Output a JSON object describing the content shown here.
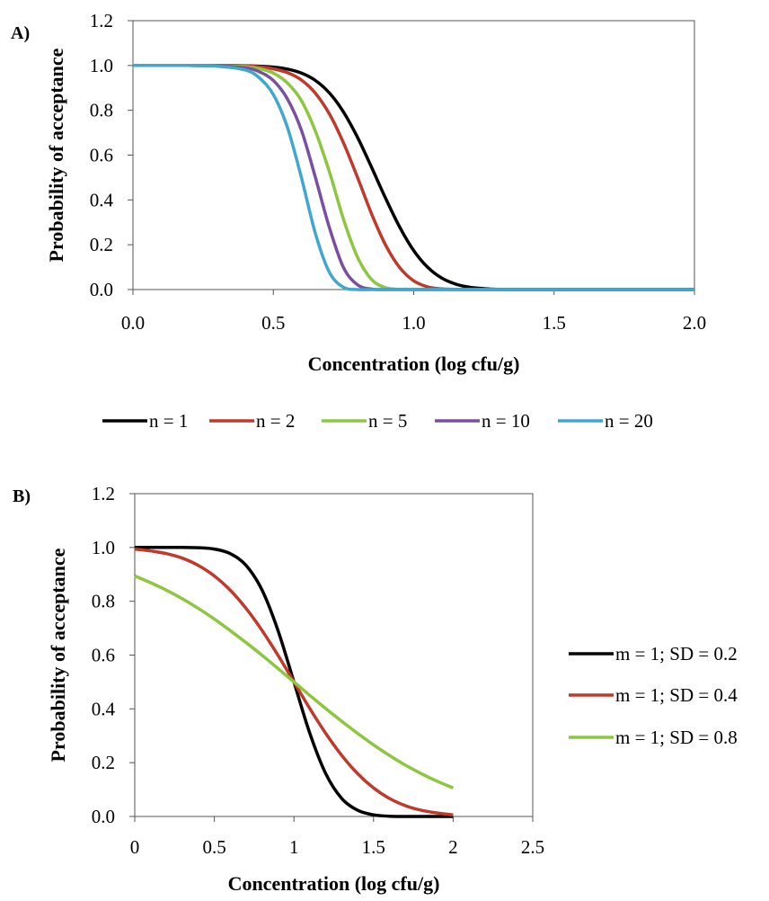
{
  "chart_data": [
    {
      "type": "line",
      "panel": "A)",
      "xlabel": "Concentration (log cfu/g)",
      "ylabel": "Probability of acceptance",
      "xlim": [
        0,
        2
      ],
      "ylim": [
        0,
        1.2
      ],
      "x_ticks": [
        "0.0",
        "0.5",
        "1.0",
        "1.5",
        "2.0"
      ],
      "y_ticks": [
        "0.0",
        "0.2",
        "0.4",
        "0.6",
        "0.8",
        "1.0",
        "1.2"
      ],
      "legend_position": "bottom",
      "grid": false,
      "x": [
        0.0,
        0.2,
        0.3,
        0.4,
        0.45,
        0.5,
        0.55,
        0.6,
        0.65,
        0.7,
        0.75,
        0.8,
        0.85,
        0.9,
        0.95,
        1.0,
        1.05,
        1.1,
        1.15,
        1.2,
        1.25,
        1.3,
        1.4,
        1.5,
        1.6,
        1.8,
        2.0
      ],
      "series": [
        {
          "name": "n = 1",
          "color": "#000000",
          "values": [
            1.0,
            1.0,
            1.0,
            0.999,
            0.997,
            0.993,
            0.984,
            0.966,
            0.933,
            0.877,
            0.792,
            0.679,
            0.546,
            0.407,
            0.279,
            0.174,
            0.099,
            0.051,
            0.024,
            0.01,
            0.004,
            0.001,
            0.0,
            0.0,
            0.0,
            0.0,
            0.0
          ]
        },
        {
          "name": "n = 2",
          "color": "#c0392b",
          "values": [
            1.0,
            1.0,
            1.0,
            0.998,
            0.994,
            0.985,
            0.968,
            0.935,
            0.876,
            0.783,
            0.654,
            0.5,
            0.338,
            0.198,
            0.098,
            0.039,
            0.012,
            0.003,
            0.001,
            0.0,
            0.0,
            0.0,
            0.0,
            0.0,
            0.0,
            0.0,
            0.0
          ]
        },
        {
          "name": "n = 5",
          "color": "#8dc63f",
          "values": [
            1.0,
            1.0,
            0.999,
            0.995,
            0.986,
            0.966,
            0.922,
            0.843,
            0.707,
            0.524,
            0.313,
            0.144,
            0.045,
            0.008,
            0.001,
            0.0,
            0.0,
            0.0,
            0.0,
            0.0,
            0.0,
            0.0,
            0.0,
            0.0,
            0.0,
            0.0,
            0.0
          ]
        },
        {
          "name": "n = 10",
          "color": "#7b4fa0",
          "values": [
            1.0,
            1.0,
            0.998,
            0.99,
            0.972,
            0.933,
            0.851,
            0.711,
            0.5,
            0.275,
            0.098,
            0.021,
            0.002,
            0.0,
            0.0,
            0.0,
            0.0,
            0.0,
            0.0,
            0.0,
            0.0,
            0.0,
            0.0,
            0.0,
            0.0,
            0.0,
            0.0
          ]
        },
        {
          "name": "n = 20",
          "color": "#3fa8cc",
          "values": [
            1.0,
            1.0,
            0.997,
            0.98,
            0.945,
            0.87,
            0.724,
            0.5,
            0.25,
            0.076,
            0.01,
            0.0,
            0.0,
            0.0,
            0.0,
            0.0,
            0.0,
            0.0,
            0.0,
            0.0,
            0.0,
            0.0,
            0.0,
            0.0,
            0.0,
            0.0,
            0.0
          ]
        }
      ]
    },
    {
      "type": "line",
      "panel": "B)",
      "xlabel": "Concentration (log cfu/g)",
      "ylabel": "Probability of acceptance",
      "xlim": [
        0,
        2.5
      ],
      "ylim": [
        0,
        1.2
      ],
      "x_ticks": [
        "0",
        "0.5",
        "1",
        "1.5",
        "2",
        "2.5"
      ],
      "y_ticks": [
        "0.0",
        "0.2",
        "0.4",
        "0.6",
        "0.8",
        "1.0",
        "1.2"
      ],
      "legend_position": "right",
      "grid": false,
      "x": [
        0.0,
        0.1,
        0.2,
        0.3,
        0.4,
        0.5,
        0.6,
        0.7,
        0.8,
        0.9,
        1.0,
        1.1,
        1.2,
        1.3,
        1.4,
        1.5,
        1.6,
        1.7,
        1.8,
        1.9,
        2.0
      ],
      "series": [
        {
          "name": "m = 1; SD = 0.2",
          "color": "#000000",
          "values": [
            1.0,
            1.0,
            1.0,
            1.0,
            0.999,
            0.994,
            0.977,
            0.933,
            0.841,
            0.691,
            0.5,
            0.309,
            0.159,
            0.067,
            0.023,
            0.006,
            0.001,
            0.0,
            0.0,
            0.0,
            0.0
          ]
        },
        {
          "name": "m = 1; SD = 0.4",
          "color": "#c0392b",
          "values": [
            0.994,
            0.987,
            0.977,
            0.96,
            0.933,
            0.894,
            0.841,
            0.773,
            0.691,
            0.599,
            0.5,
            0.401,
            0.309,
            0.227,
            0.159,
            0.106,
            0.067,
            0.04,
            0.023,
            0.013,
            0.006
          ]
        },
        {
          "name": "m = 1; SD = 0.8",
          "color": "#8dc63f",
          "values": [
            0.894,
            0.869,
            0.841,
            0.809,
            0.773,
            0.734,
            0.691,
            0.646,
            0.599,
            0.55,
            0.5,
            0.45,
            0.401,
            0.354,
            0.309,
            0.266,
            0.227,
            0.191,
            0.159,
            0.131,
            0.106
          ]
        }
      ]
    }
  ]
}
